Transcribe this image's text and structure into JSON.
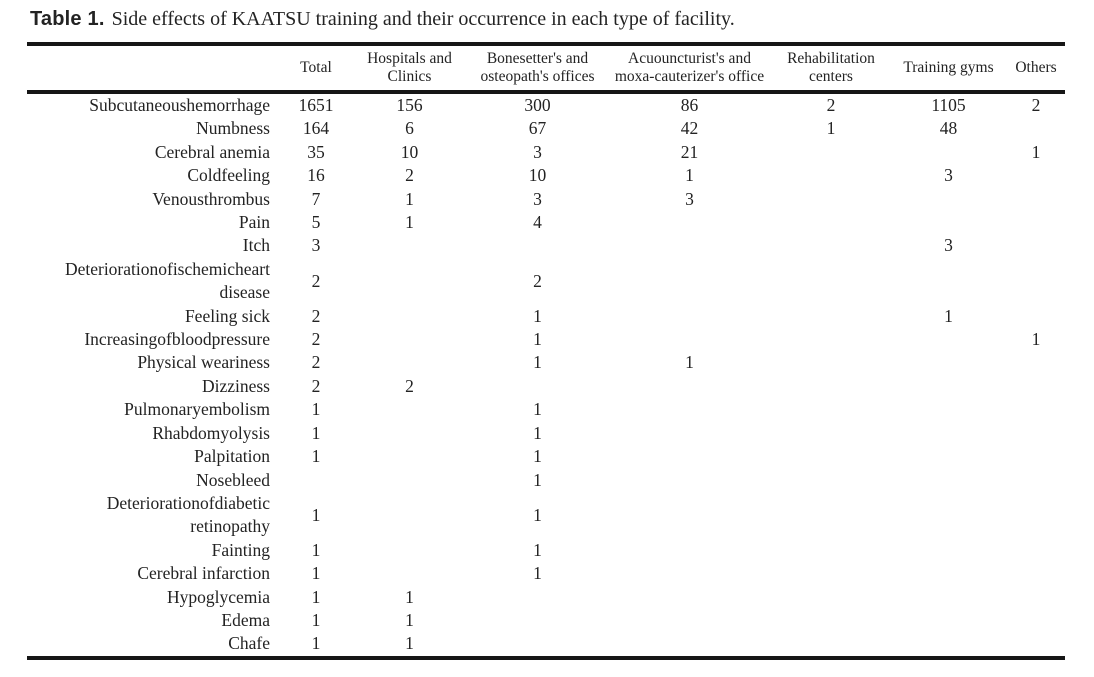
{
  "caption": {
    "label": "Table 1.",
    "text": "Side effects of KAATSU training and their occurrence in each type of facility."
  },
  "colors": {
    "text": "#232323",
    "rule": "#161616",
    "background": "#ffffff"
  },
  "table": {
    "columns": [
      "",
      "Total",
      "Hospitals and Clinics",
      "Bonesetter's and osteopath's offices",
      "Acuouncturist's and moxa-cauterizer's office",
      "Rehabilitation centers",
      "Training gyms",
      "Others"
    ],
    "rows": [
      {
        "label": "Subcutaneoushemorrhage",
        "values": [
          "1651",
          "156",
          "300",
          "86",
          "2",
          "1105",
          "2"
        ]
      },
      {
        "label": "Numbness",
        "values": [
          "164",
          "6",
          "67",
          "42",
          "1",
          "48",
          ""
        ]
      },
      {
        "label": "Cerebral anemia",
        "values": [
          "35",
          "10",
          "3",
          "21",
          "",
          "",
          "1"
        ]
      },
      {
        "label": "Coldfeeling",
        "values": [
          "16",
          "2",
          "10",
          "1",
          "",
          "3",
          ""
        ]
      },
      {
        "label": "Venousthrombus",
        "values": [
          "7",
          "1",
          "3",
          "3",
          "",
          "",
          ""
        ]
      },
      {
        "label": "Pain",
        "values": [
          "5",
          "1",
          "4",
          "",
          "",
          "",
          ""
        ]
      },
      {
        "label": "Itch",
        "values": [
          "3",
          "",
          "",
          "",
          "",
          "3",
          ""
        ]
      },
      {
        "label": "Deteriorationofischemicheart disease",
        "values": [
          "2",
          "",
          "2",
          "",
          "",
          "",
          ""
        ]
      },
      {
        "label": "Feeling sick",
        "values": [
          "2",
          "",
          "1",
          "",
          "",
          "1",
          ""
        ]
      },
      {
        "label": "Increasingofbloodpressure",
        "values": [
          "2",
          "",
          "1",
          "",
          "",
          "",
          "1"
        ]
      },
      {
        "label": "Physical weariness",
        "values": [
          "2",
          "",
          "1",
          "1",
          "",
          "",
          ""
        ]
      },
      {
        "label": "Dizziness",
        "values": [
          "2",
          "2",
          "",
          "",
          "",
          "",
          ""
        ]
      },
      {
        "label": "Pulmonaryembolism",
        "values": [
          "1",
          "",
          "1",
          "",
          "",
          "",
          ""
        ]
      },
      {
        "label": "Rhabdomyolysis",
        "values": [
          "1",
          "",
          "1",
          "",
          "",
          "",
          ""
        ]
      },
      {
        "label": "Palpitation",
        "values": [
          "1",
          "",
          "1",
          "",
          "",
          "",
          ""
        ]
      },
      {
        "label": "Nosebleed",
        "values": [
          "",
          "",
          "1",
          "",
          "",
          "",
          ""
        ]
      },
      {
        "label": "Deteriorationofdiabetic retinopathy",
        "values": [
          "1",
          "",
          "1",
          "",
          "",
          "",
          ""
        ]
      },
      {
        "label": "Fainting",
        "values": [
          "1",
          "",
          "1",
          "",
          "",
          "",
          ""
        ]
      },
      {
        "label": "Cerebral infarction",
        "values": [
          "1",
          "",
          "1",
          "",
          "",
          "",
          ""
        ]
      },
      {
        "label": "Hypoglycemia",
        "values": [
          "1",
          "1",
          "",
          "",
          "",
          "",
          ""
        ]
      },
      {
        "label": "Edema",
        "values": [
          "1",
          "1",
          "",
          "",
          "",
          "",
          ""
        ]
      },
      {
        "label": "Chafe",
        "values": [
          "1",
          "1",
          "",
          "",
          "",
          "",
          ""
        ]
      }
    ]
  }
}
